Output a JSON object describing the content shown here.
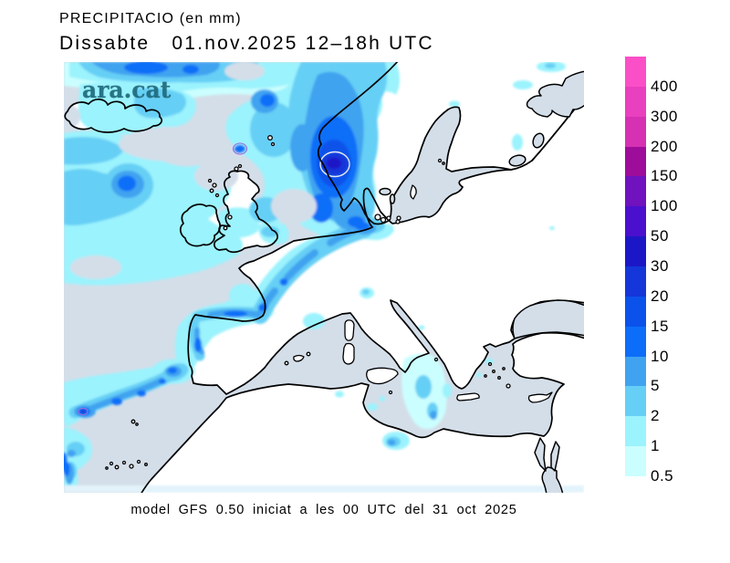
{
  "header": {
    "title_line1": "PRECIPITACIO (en mm)",
    "title_line2": "Dissabte   01.nov.2025 12–18h UTC"
  },
  "watermark": {
    "text": "ara.cat",
    "color": "#1e6b7d"
  },
  "footer": {
    "model_info": "model GFS 0.50 iniciat a les 00 UTC del 31 oct 2025"
  },
  "legend": {
    "unit": "mm",
    "labels": [
      "400",
      "300",
      "200",
      "150",
      "100",
      "50",
      "30",
      "20",
      "15",
      "10",
      "5",
      "2",
      "1",
      "0.5"
    ],
    "colors_top_to_bottom": [
      "#fb4fc8",
      "#e840be",
      "#d631b2",
      "#9e0d9a",
      "#7012be",
      "#4a10ce",
      "#1c17c6",
      "#1536d9",
      "#0b52ea",
      "#0c6ef8",
      "#3fa3f0",
      "#66cff5",
      "#9bf3fd",
      "#cbfefe"
    ]
  },
  "map": {
    "sea_color": "#d4dee9",
    "land_color": "#ffffff",
    "coast_color": "#000000",
    "edge_strip_color": "#e3f3fb",
    "contour_ring_light": "#e9e7f2",
    "contour_ring_purple": "#a06cdc"
  }
}
